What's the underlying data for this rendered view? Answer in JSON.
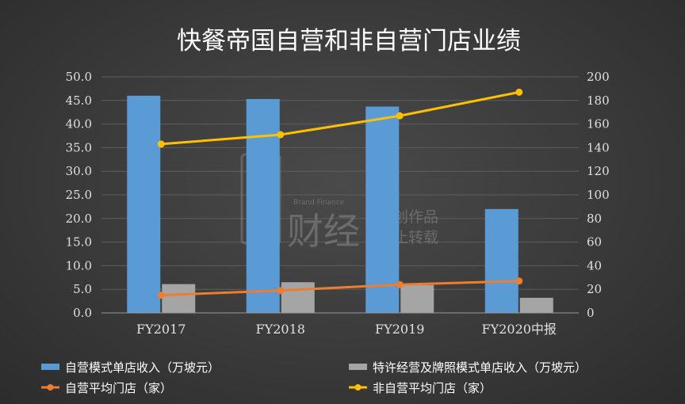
{
  "chart_data": {
    "type": "bar",
    "title": "快餐帝国自营和非自营门店业绩",
    "categories": [
      "FY2017",
      "FY2018",
      "FY2019",
      "FY2020中报"
    ],
    "y_left": {
      "ylim": [
        0,
        50
      ],
      "ticks": [
        "0.0",
        "5.0",
        "10.0",
        "15.0",
        "20.0",
        "25.0",
        "30.0",
        "35.0",
        "40.0",
        "45.0",
        "50.0"
      ]
    },
    "y_right": {
      "ylim": [
        0,
        200
      ],
      "ticks": [
        "0",
        "20",
        "40",
        "60",
        "80",
        "100",
        "120",
        "140",
        "160",
        "180",
        "200"
      ]
    },
    "series": [
      {
        "name": "自营模式单店收入（万坡元）",
        "type": "bar",
        "axis": "left",
        "color": "#5b9bd5",
        "values": [
          46.0,
          45.3,
          43.7,
          22.0
        ]
      },
      {
        "name": "特许经营及牌照模式单店收入（万坡元）",
        "type": "bar",
        "axis": "left",
        "color": "#a5a5a5",
        "values": [
          6.1,
          6.5,
          5.9,
          3.2
        ]
      },
      {
        "name": "自营平均门店（家）",
        "type": "line",
        "axis": "right",
        "color": "#ed7d31",
        "values": [
          15,
          19,
          24,
          27
        ]
      },
      {
        "name": "非自营平均门店（家）",
        "type": "line",
        "axis": "right",
        "color": "#ffc000",
        "values": [
          143,
          151,
          167,
          187
        ]
      }
    ],
    "grid": true,
    "legend_position": "bottom"
  },
  "watermark": {
    "brand_cn": "财经",
    "brand_en": "Brand Finance",
    "line1": "原创作品",
    "line2": "禁止转载"
  }
}
